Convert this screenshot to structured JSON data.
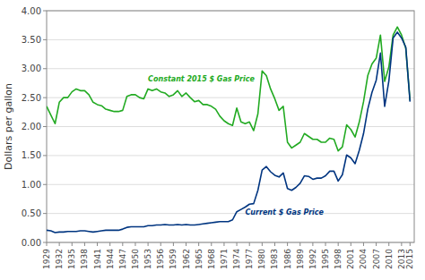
{
  "chart_data": {
    "type": "line",
    "y_label": "Dollars per gallon",
    "x": [
      1929,
      1930,
      1931,
      1932,
      1933,
      1934,
      1935,
      1936,
      1937,
      1938,
      1939,
      1940,
      1941,
      1942,
      1943,
      1944,
      1945,
      1946,
      1947,
      1948,
      1949,
      1950,
      1951,
      1952,
      1953,
      1954,
      1955,
      1956,
      1957,
      1958,
      1959,
      1960,
      1961,
      1962,
      1963,
      1964,
      1965,
      1966,
      1967,
      1968,
      1969,
      1970,
      1971,
      1972,
      1973,
      1974,
      1975,
      1976,
      1977,
      1978,
      1979,
      1980,
      1981,
      1982,
      1983,
      1984,
      1985,
      1986,
      1987,
      1988,
      1989,
      1990,
      1991,
      1992,
      1993,
      1994,
      1995,
      1996,
      1997,
      1998,
      1999,
      2000,
      2001,
      2002,
      2003,
      2004,
      2005,
      2006,
      2007,
      2008,
      2009,
      2010,
      2011,
      2012,
      2013,
      2014,
      2015
    ],
    "series": [
      {
        "name": "Constant 2015 $ Gas Price",
        "color": "#22aa22",
        "values": [
          2.35,
          2.2,
          2.05,
          2.42,
          2.5,
          2.5,
          2.6,
          2.65,
          2.62,
          2.62,
          2.55,
          2.42,
          2.38,
          2.36,
          2.3,
          2.28,
          2.26,
          2.26,
          2.28,
          2.52,
          2.55,
          2.55,
          2.5,
          2.48,
          2.65,
          2.62,
          2.65,
          2.6,
          2.58,
          2.52,
          2.55,
          2.62,
          2.52,
          2.58,
          2.5,
          2.43,
          2.45,
          2.38,
          2.38,
          2.35,
          2.3,
          2.18,
          2.1,
          2.05,
          2.02,
          2.32,
          2.08,
          2.05,
          2.08,
          1.93,
          2.22,
          2.96,
          2.88,
          2.65,
          2.48,
          2.28,
          2.35,
          1.73,
          1.63,
          1.68,
          1.73,
          1.88,
          1.83,
          1.78,
          1.78,
          1.73,
          1.73,
          1.8,
          1.78,
          1.58,
          1.65,
          2.03,
          1.95,
          1.82,
          2.08,
          2.43,
          2.88,
          3.08,
          3.18,
          3.58,
          2.78,
          3.03,
          3.58,
          3.72,
          3.58,
          3.35,
          2.45
        ]
      },
      {
        "name": "Current $ Gas Price",
        "color": "#003580",
        "values": [
          0.21,
          0.2,
          0.17,
          0.18,
          0.18,
          0.19,
          0.19,
          0.19,
          0.2,
          0.2,
          0.19,
          0.18,
          0.19,
          0.2,
          0.21,
          0.21,
          0.21,
          0.21,
          0.23,
          0.26,
          0.27,
          0.27,
          0.27,
          0.27,
          0.29,
          0.29,
          0.3,
          0.3,
          0.31,
          0.3,
          0.3,
          0.31,
          0.3,
          0.31,
          0.3,
          0.3,
          0.31,
          0.32,
          0.33,
          0.34,
          0.35,
          0.36,
          0.36,
          0.36,
          0.39,
          0.53,
          0.57,
          0.61,
          0.66,
          0.67,
          0.9,
          1.25,
          1.31,
          1.22,
          1.16,
          1.13,
          1.2,
          0.93,
          0.9,
          0.95,
          1.02,
          1.15,
          1.14,
          1.09,
          1.11,
          1.11,
          1.15,
          1.23,
          1.23,
          1.06,
          1.17,
          1.51,
          1.46,
          1.36,
          1.59,
          1.88,
          2.3,
          2.59,
          2.8,
          3.27,
          2.35,
          2.79,
          3.53,
          3.63,
          3.53,
          3.37,
          2.43
        ]
      }
    ],
    "annotations": [
      {
        "text": "Constant 2015 $ Gas Price",
        "x": 1953,
        "y": 2.78
      },
      {
        "text": "Current $ Gas Price",
        "x": 1976,
        "y": 0.48
      }
    ],
    "xlim": [
      1929,
      2016
    ],
    "xticks": [
      1929,
      1932,
      1935,
      1938,
      1941,
      1944,
      1947,
      1950,
      1953,
      1956,
      1959,
      1962,
      1965,
      1968,
      1971,
      1974,
      1977,
      1980,
      1983,
      1986,
      1989,
      1992,
      1995,
      1998,
      2001,
      2004,
      2007,
      2010,
      2013,
      2015
    ],
    "ylim": [
      0,
      4.0
    ],
    "yticks": [
      {
        "value": 0.0,
        "label": "0.00"
      },
      {
        "value": 0.5,
        "label": "0.50"
      },
      {
        "value": 1.0,
        "label": "1.00"
      },
      {
        "value": 1.5,
        "label": "1.50"
      },
      {
        "value": 2.0,
        "label": "2.00"
      },
      {
        "value": 2.5,
        "label": "2.50"
      },
      {
        "value": 3.0,
        "label": "3.00"
      },
      {
        "value": 3.5,
        "label": "3.50"
      },
      {
        "value": 4.0,
        "label": "4.00"
      }
    ],
    "grid": true
  }
}
